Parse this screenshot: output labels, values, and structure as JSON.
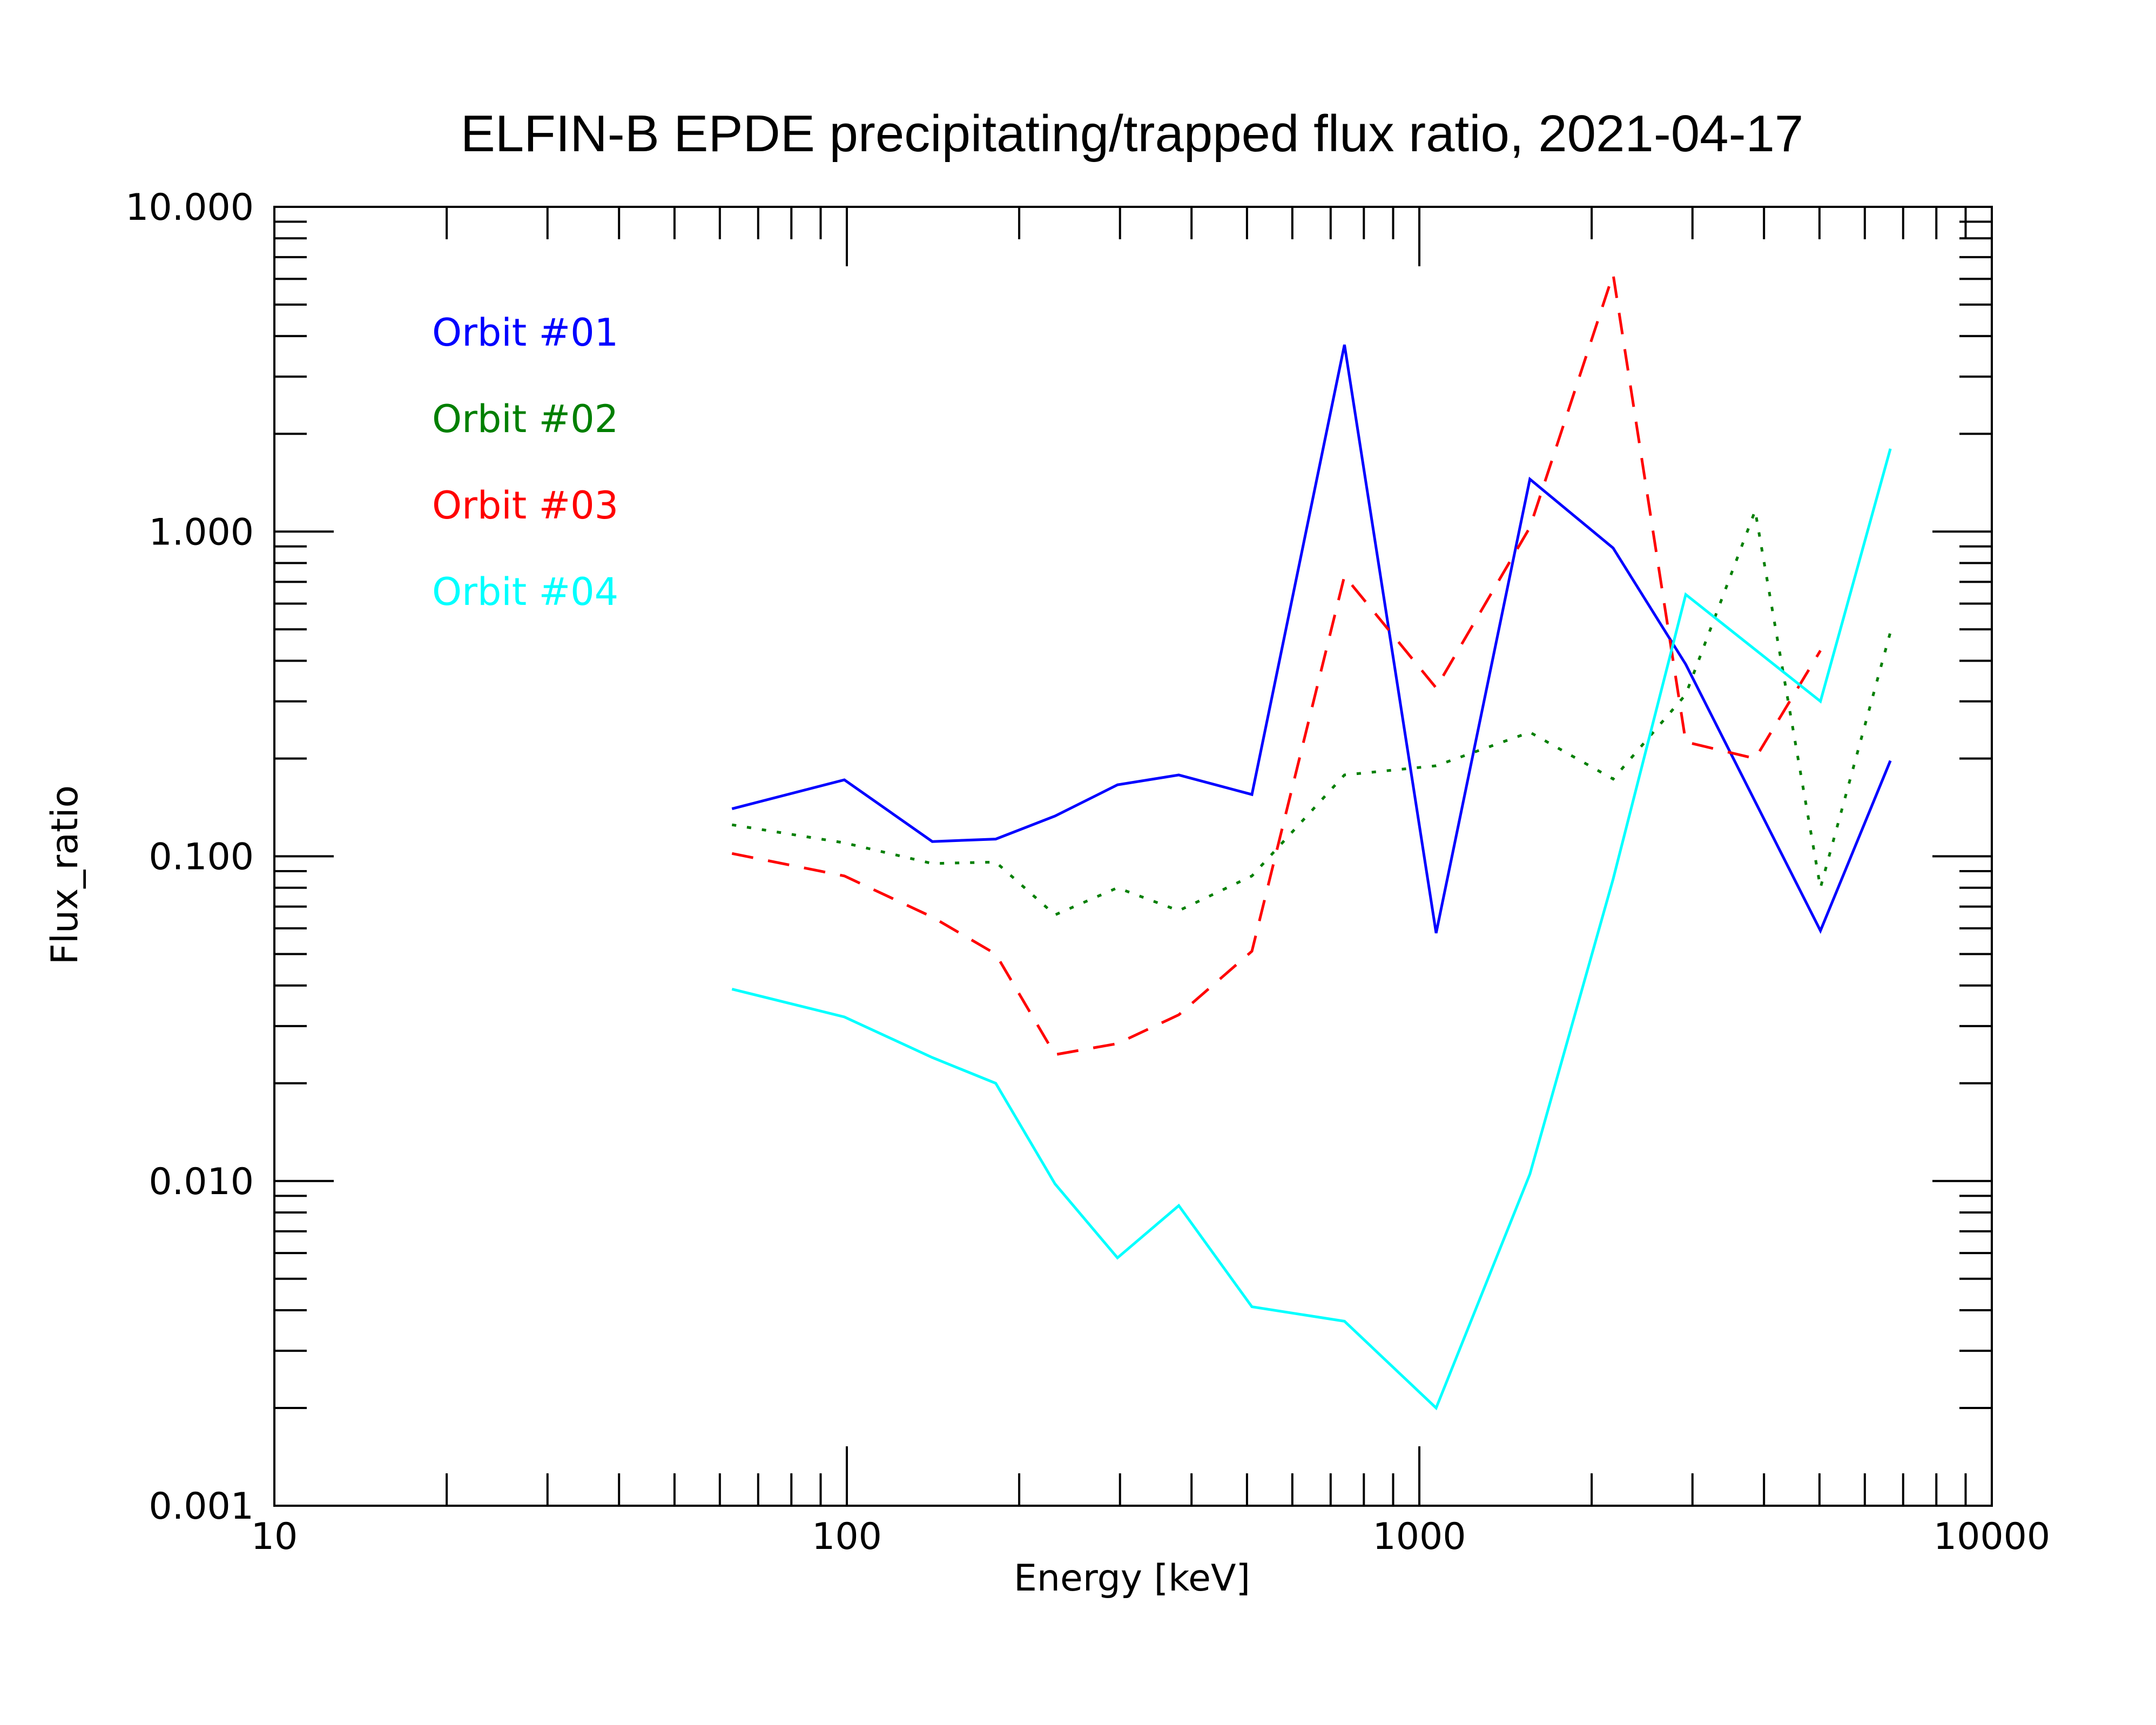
{
  "chart_data": {
    "type": "line",
    "title": "ELFIN-B EPDE precipitating/trapped flux ratio, 2021-04-17",
    "xlabel": "Energy [keV]",
    "ylabel": "Flux_ratio",
    "xscale": "log",
    "yscale": "log",
    "xlim": [
      10,
      10000
    ],
    "ylim": [
      0.001,
      10
    ],
    "x_tick_labels": [
      "10",
      "100",
      "1000",
      "10000"
    ],
    "y_tick_labels": [
      "0.001",
      "0.010",
      "0.100",
      "1.000",
      "10.000"
    ],
    "legend_position": "top-left",
    "series": [
      {
        "name": "Orbit #01",
        "color": "#0000ff",
        "dash": "solid",
        "x": [
          63,
          99,
          141,
          182,
          231,
          297,
          380,
          510,
          740,
          1070,
          1560,
          2180,
          2920,
          5020,
          6650
        ],
        "values": [
          0.14,
          0.172,
          0.111,
          0.113,
          0.133,
          0.166,
          0.178,
          0.155,
          3.76,
          0.058,
          1.45,
          0.89,
          0.39,
          0.059,
          0.197
        ]
      },
      {
        "name": "Orbit #02",
        "color": "#007f00",
        "dash": "dotted",
        "x": [
          63,
          99,
          141,
          182,
          231,
          297,
          380,
          510,
          740,
          1070,
          1560,
          2180,
          2920,
          3860,
          5020,
          6650
        ],
        "values": [
          0.125,
          0.11,
          0.095,
          0.096,
          0.066,
          0.08,
          0.068,
          0.087,
          0.178,
          0.19,
          0.241,
          0.173,
          0.315,
          1.16,
          0.08,
          0.49
        ]
      },
      {
        "name": "Orbit #03",
        "color": "#ff0000",
        "dash": "dashed",
        "x": [
          63,
          99,
          141,
          182,
          231,
          297,
          380,
          510,
          740,
          1070,
          1560,
          2180,
          2920,
          3860,
          5020
        ],
        "values": [
          0.102,
          0.087,
          0.065,
          0.05,
          0.0245,
          0.0265,
          0.0325,
          0.051,
          0.73,
          0.33,
          1.03,
          6.2,
          0.225,
          0.2,
          0.43
        ]
      },
      {
        "name": "Orbit #04",
        "color": "#00ffff",
        "dash": "solid",
        "x": [
          63,
          99,
          141,
          182,
          231,
          297,
          380,
          510,
          740,
          1070,
          1560,
          2180,
          2920,
          5020,
          6650
        ],
        "values": [
          0.039,
          0.032,
          0.024,
          0.02,
          0.0098,
          0.0058,
          0.0084,
          0.0041,
          0.0037,
          0.002,
          0.0105,
          0.085,
          0.64,
          0.3,
          1.8
        ]
      }
    ]
  }
}
